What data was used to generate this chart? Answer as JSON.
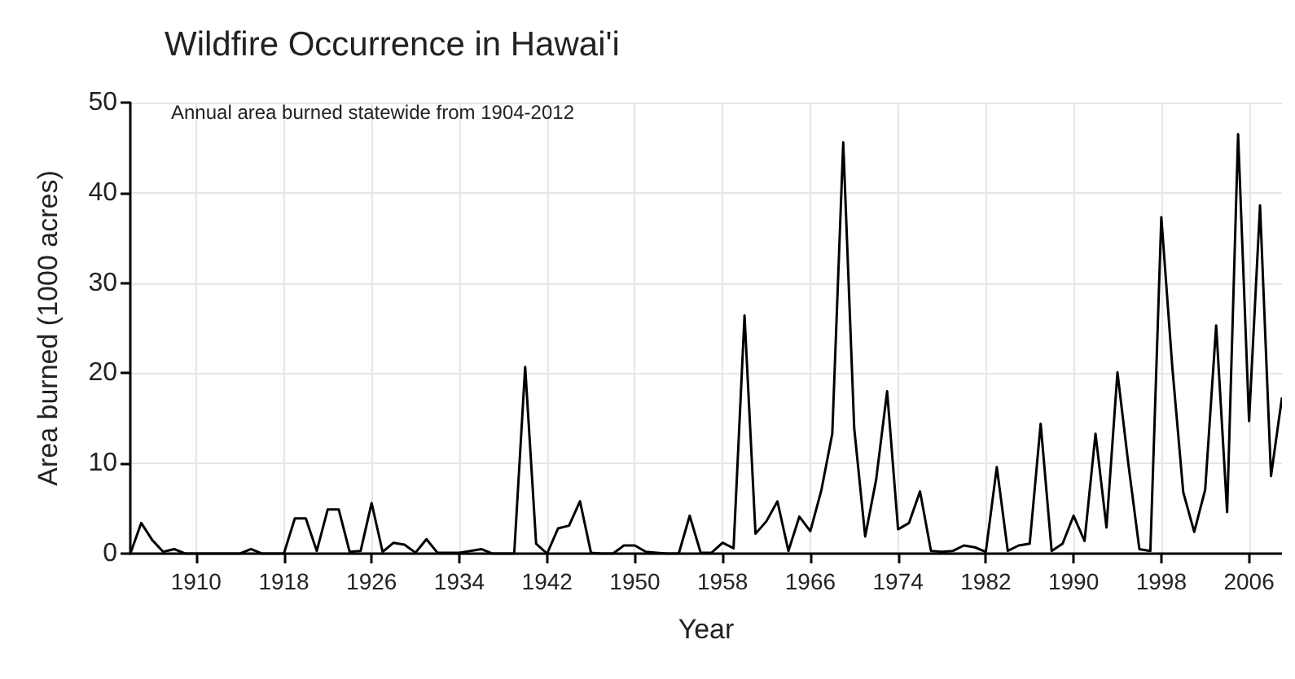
{
  "chart_data": {
    "type": "line",
    "title": "Wildfire Occurrence in Hawai'i",
    "subtitle": "Annual area burned statewide from 1904-2012",
    "xlabel": "Year",
    "ylabel": "Area burned (1000 acres)",
    "x": [
      1904,
      1905,
      1906,
      1907,
      1908,
      1909,
      1910,
      1911,
      1912,
      1913,
      1914,
      1915,
      1916,
      1917,
      1918,
      1919,
      1920,
      1921,
      1922,
      1923,
      1924,
      1925,
      1926,
      1927,
      1928,
      1929,
      1930,
      1931,
      1932,
      1933,
      1934,
      1935,
      1936,
      1937,
      1938,
      1939,
      1940,
      1941,
      1942,
      1943,
      1944,
      1945,
      1946,
      1947,
      1948,
      1949,
      1950,
      1951,
      1952,
      1953,
      1954,
      1955,
      1956,
      1957,
      1958,
      1959,
      1960,
      1961,
      1962,
      1963,
      1964,
      1965,
      1966,
      1967,
      1968,
      1969,
      1970,
      1971,
      1972,
      1973,
      1974,
      1975,
      1976,
      1977,
      1978,
      1979,
      1980,
      1981,
      1982,
      1983,
      1984,
      1985,
      1986,
      1987,
      1988,
      1989,
      1990,
      1991,
      1992,
      1993,
      1994,
      1995,
      1996,
      1997,
      1998,
      1999,
      2000,
      2001,
      2002,
      2003,
      2004,
      2005,
      2006,
      2007,
      2008,
      2009
    ],
    "series": [
      {
        "color": "#000000",
        "values": [
          0,
          3.4,
          1.5,
          0.2,
          0.5,
          0,
          0,
          0,
          0,
          0,
          0,
          0.5,
          0,
          0,
          0,
          3.9,
          3.9,
          0.3,
          4.9,
          4.9,
          0.2,
          0.3,
          5.6,
          0.2,
          1.2,
          1,
          0.1,
          1.6,
          0.1,
          0.1,
          0.1,
          0.3,
          0.5,
          0,
          0,
          0,
          20.7,
          1.1,
          0,
          2.8,
          3.1,
          5.8,
          0.1,
          0,
          0,
          0.9,
          0.9,
          0.2,
          0.1,
          0,
          0,
          4.2,
          0.1,
          0.1,
          1.2,
          0.6,
          26.4,
          2.2,
          3.6,
          5.8,
          0.3,
          4.1,
          2.5,
          7,
          13.3,
          45.6,
          13.9,
          1.9,
          8.2,
          18,
          2.7,
          3.4,
          6.9,
          0.3,
          0.2,
          0.3,
          0.9,
          0.7,
          0.2,
          9.6,
          0.3,
          0.9,
          1.1,
          14.4,
          0.3,
          1.1,
          4.2,
          1.4,
          13.3,
          2.9,
          20.1,
          9.9,
          0.5,
          0.3,
          37.3,
          20.7,
          6.8,
          2.4,
          7.1,
          25.3,
          4.6,
          46.5,
          14.7,
          38.6,
          8.6,
          17.3
        ]
      }
    ],
    "xlim": [
      1904,
      2009
    ],
    "xticks": [
      1910,
      1918,
      1926,
      1934,
      1942,
      1950,
      1958,
      1966,
      1974,
      1982,
      1990,
      1998,
      2006
    ],
    "ylim": [
      0,
      50
    ],
    "yticks": [
      0,
      10,
      20,
      30,
      40,
      50
    ],
    "grid": true,
    "marker": "none",
    "line_style": "solid"
  }
}
